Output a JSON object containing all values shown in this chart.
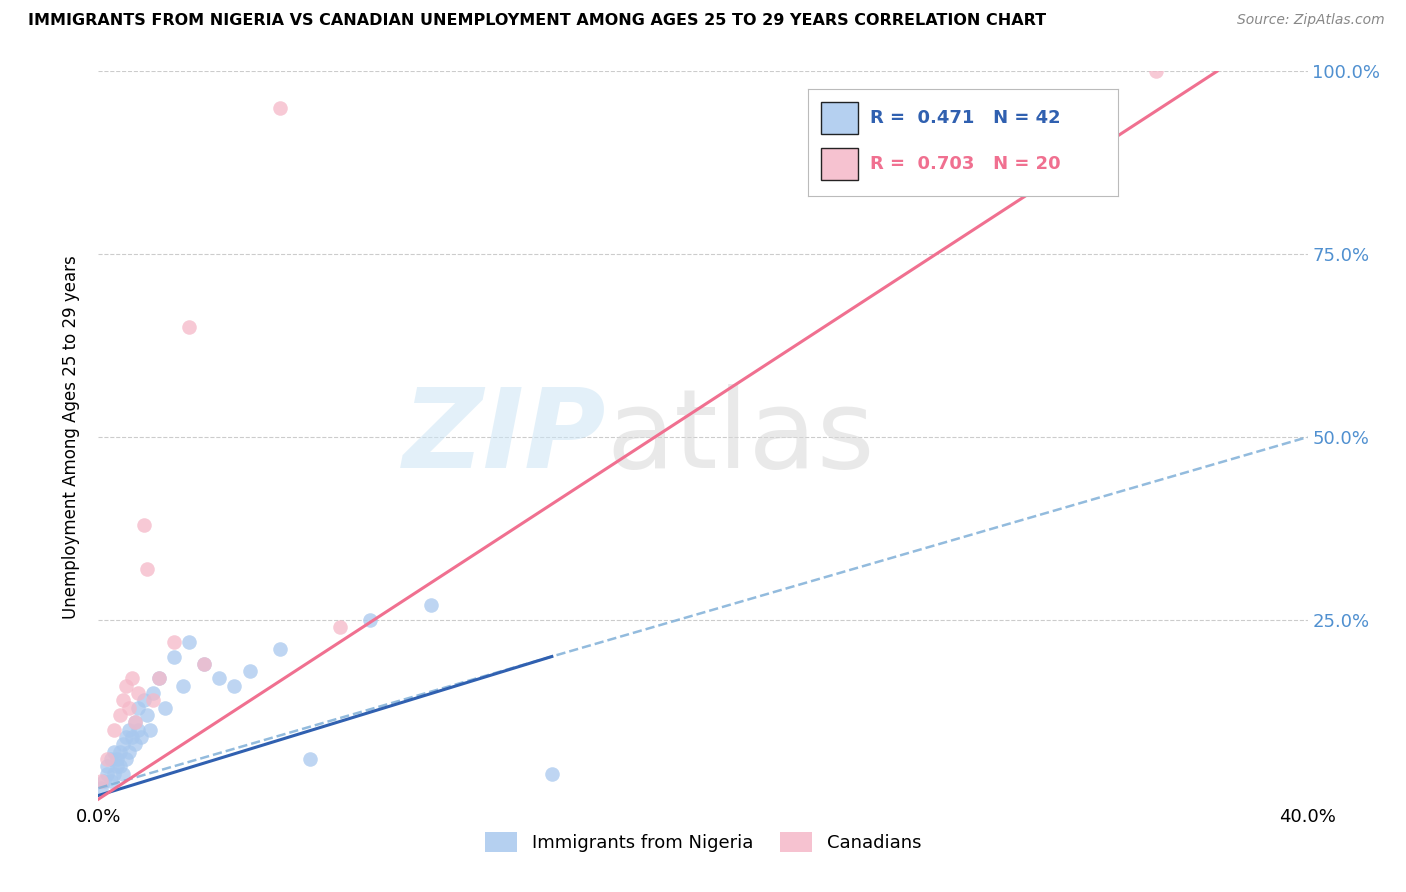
{
  "title": "IMMIGRANTS FROM NIGERIA VS CANADIAN UNEMPLOYMENT AMONG AGES 25 TO 29 YEARS CORRELATION CHART",
  "source": "Source: ZipAtlas.com",
  "ylabel": "Unemployment Among Ages 25 to 29 years",
  "xlim": [
    0.0,
    0.4
  ],
  "ylim": [
    0.0,
    1.0
  ],
  "xtick_positions": [
    0.0,
    0.1,
    0.2,
    0.3,
    0.4
  ],
  "xtick_labels": [
    "0.0%",
    "",
    "",
    "",
    "40.0%"
  ],
  "ytick_positions": [
    0.0,
    0.25,
    0.5,
    0.75,
    1.0
  ],
  "ytick_labels_right": [
    "",
    "25.0%",
    "50.0%",
    "75.0%",
    "100.0%"
  ],
  "legend_labels": [
    "Immigrants from Nigeria",
    "Canadians"
  ],
  "legend_r_blue": "R =  0.471",
  "legend_n_blue": "N = 42",
  "legend_r_pink": "R =  0.703",
  "legend_n_pink": "N = 20",
  "blue_color": "#a8c8ee",
  "pink_color": "#f5b8c8",
  "blue_line_color": "#3060b0",
  "blue_dash_color": "#80b0d8",
  "pink_line_color": "#f07090",
  "watermark_zip": "ZIP",
  "watermark_atlas": "atlas",
  "blue_scatter_x": [
    0.001,
    0.002,
    0.003,
    0.003,
    0.004,
    0.004,
    0.005,
    0.005,
    0.006,
    0.006,
    0.007,
    0.007,
    0.008,
    0.008,
    0.009,
    0.009,
    0.01,
    0.01,
    0.011,
    0.012,
    0.012,
    0.013,
    0.013,
    0.014,
    0.015,
    0.016,
    0.017,
    0.018,
    0.02,
    0.022,
    0.025,
    0.028,
    0.03,
    0.035,
    0.04,
    0.045,
    0.05,
    0.06,
    0.07,
    0.09,
    0.11,
    0.15
  ],
  "blue_scatter_y": [
    0.02,
    0.03,
    0.04,
    0.05,
    0.03,
    0.06,
    0.04,
    0.07,
    0.05,
    0.06,
    0.07,
    0.05,
    0.08,
    0.04,
    0.06,
    0.09,
    0.07,
    0.1,
    0.09,
    0.08,
    0.11,
    0.1,
    0.13,
    0.09,
    0.14,
    0.12,
    0.1,
    0.15,
    0.17,
    0.13,
    0.2,
    0.16,
    0.22,
    0.19,
    0.17,
    0.16,
    0.18,
    0.21,
    0.06,
    0.25,
    0.27,
    0.04
  ],
  "pink_scatter_x": [
    0.001,
    0.003,
    0.005,
    0.007,
    0.008,
    0.009,
    0.01,
    0.011,
    0.012,
    0.013,
    0.015,
    0.016,
    0.018,
    0.02,
    0.025,
    0.03,
    0.035,
    0.06,
    0.08,
    0.35
  ],
  "pink_scatter_y": [
    0.03,
    0.06,
    0.1,
    0.12,
    0.14,
    0.16,
    0.13,
    0.17,
    0.11,
    0.15,
    0.38,
    0.32,
    0.14,
    0.17,
    0.22,
    0.65,
    0.19,
    0.95,
    0.24,
    1.0
  ],
  "blue_solid_line_x": [
    0.0,
    0.15
  ],
  "blue_solid_line_y": [
    0.01,
    0.2
  ],
  "blue_dash_line_x": [
    0.0,
    0.4
  ],
  "blue_dash_line_y": [
    0.02,
    0.5
  ],
  "pink_solid_line_x": [
    0.0,
    0.37
  ],
  "pink_solid_line_y": [
    0.005,
    1.0
  ]
}
